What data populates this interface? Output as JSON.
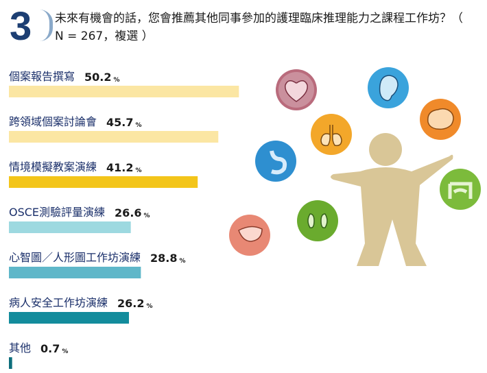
{
  "question": {
    "number": "3",
    "text": "未來有機會的話，您會推薦其他同事參加的護理臨床推理能力之課程工作坊？（ N = 267，複選 ）"
  },
  "chart_data": {
    "type": "bar",
    "orientation": "horizontal",
    "categories": [
      "個案報告撰寫",
      "跨領域個案討論會",
      "情境模擬教案演練",
      "OSCE測驗評量演練",
      "心智圖／人形圖工作坊演練",
      "病人安全工作坊演練",
      "其他"
    ],
    "values": [
      50.2,
      45.7,
      41.2,
      26.6,
      28.8,
      26.2,
      0.7
    ],
    "value_labels": [
      "50.2",
      "45.7",
      "41.2",
      "26.6",
      "28.8",
      "26.2",
      "0.7"
    ],
    "unit": "%",
    "colors": [
      "#fbe6a3",
      "#fbe6a3",
      "#f3c51a",
      "#9dd9e0",
      "#5fb7c9",
      "#138c9c",
      "#0e6e7c"
    ],
    "xlim": [
      0,
      100
    ],
    "grid": false,
    "legend": "none"
  },
  "illustration": {
    "icons": [
      "heart-icon",
      "ear-icon",
      "brain-icon",
      "lungs-icon",
      "stomach-icon",
      "intestine-icon",
      "kidney-icon",
      "liver-icon"
    ],
    "figure_color": "#d9c697"
  }
}
